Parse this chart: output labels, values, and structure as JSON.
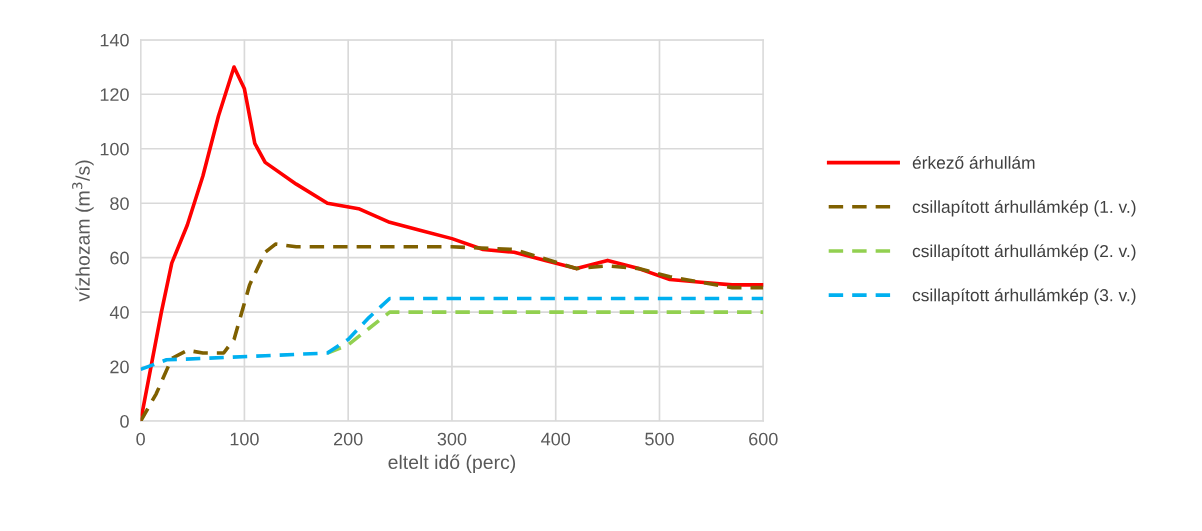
{
  "chart_data": {
    "type": "line",
    "xlabel": "eltelt idő (perc)",
    "ylabel": "vízhozam (m$^{3}$/s)",
    "xlim": [
      0,
      600
    ],
    "xticks": [
      0,
      100,
      200,
      300,
      400,
      500,
      600
    ],
    "ylim": [
      0,
      140
    ],
    "yticks": [
      0,
      20,
      40,
      60,
      80,
      100,
      120,
      140
    ],
    "grid": true,
    "legend": "right",
    "series": [
      {
        "name": "érkező árhullám",
        "color": "#ff0000",
        "line_style": "solid",
        "x": [
          0,
          10,
          20,
          30,
          45,
          60,
          75,
          90,
          100,
          110,
          120,
          150,
          180,
          210,
          240,
          270,
          300,
          330,
          360,
          390,
          420,
          450,
          480,
          510,
          540,
          570,
          600
        ],
        "values": [
          0,
          20,
          40,
          58,
          72,
          90,
          112,
          130,
          122,
          102,
          95,
          87,
          80,
          78,
          73,
          70,
          67,
          63,
          62,
          59,
          56,
          59,
          56,
          52,
          51,
          50,
          50
        ]
      },
      {
        "name": "csillapított árhullámkép (1. v.)",
        "color": "#7f6000",
        "line_style": "dashed",
        "x": [
          0,
          15,
          30,
          45,
          60,
          80,
          90,
          105,
          120,
          130,
          150,
          300,
          360,
          420,
          450,
          480,
          510,
          540,
          570,
          600
        ],
        "values": [
          0,
          10,
          23,
          26,
          25,
          25,
          30,
          50,
          62,
          65,
          64,
          64,
          63,
          56,
          57,
          56,
          53,
          51,
          49,
          49
        ]
      },
      {
        "name": "csillapított árhullámkép (2. v.)",
        "color": "#92d050",
        "line_style": "dashed",
        "x": [
          180,
          200,
          220,
          240,
          600
        ],
        "values": [
          25,
          28,
          34,
          40,
          40
        ]
      },
      {
        "name": "csillapított árhullámkép (3. v.)",
        "color": "#00b0f0",
        "line_style": "dashed",
        "x": [
          0,
          25,
          60,
          120,
          180,
          200,
          220,
          240,
          260,
          600
        ],
        "values": [
          19,
          22.5,
          23,
          24,
          25,
          30,
          38,
          45,
          45,
          45
        ]
      }
    ]
  }
}
